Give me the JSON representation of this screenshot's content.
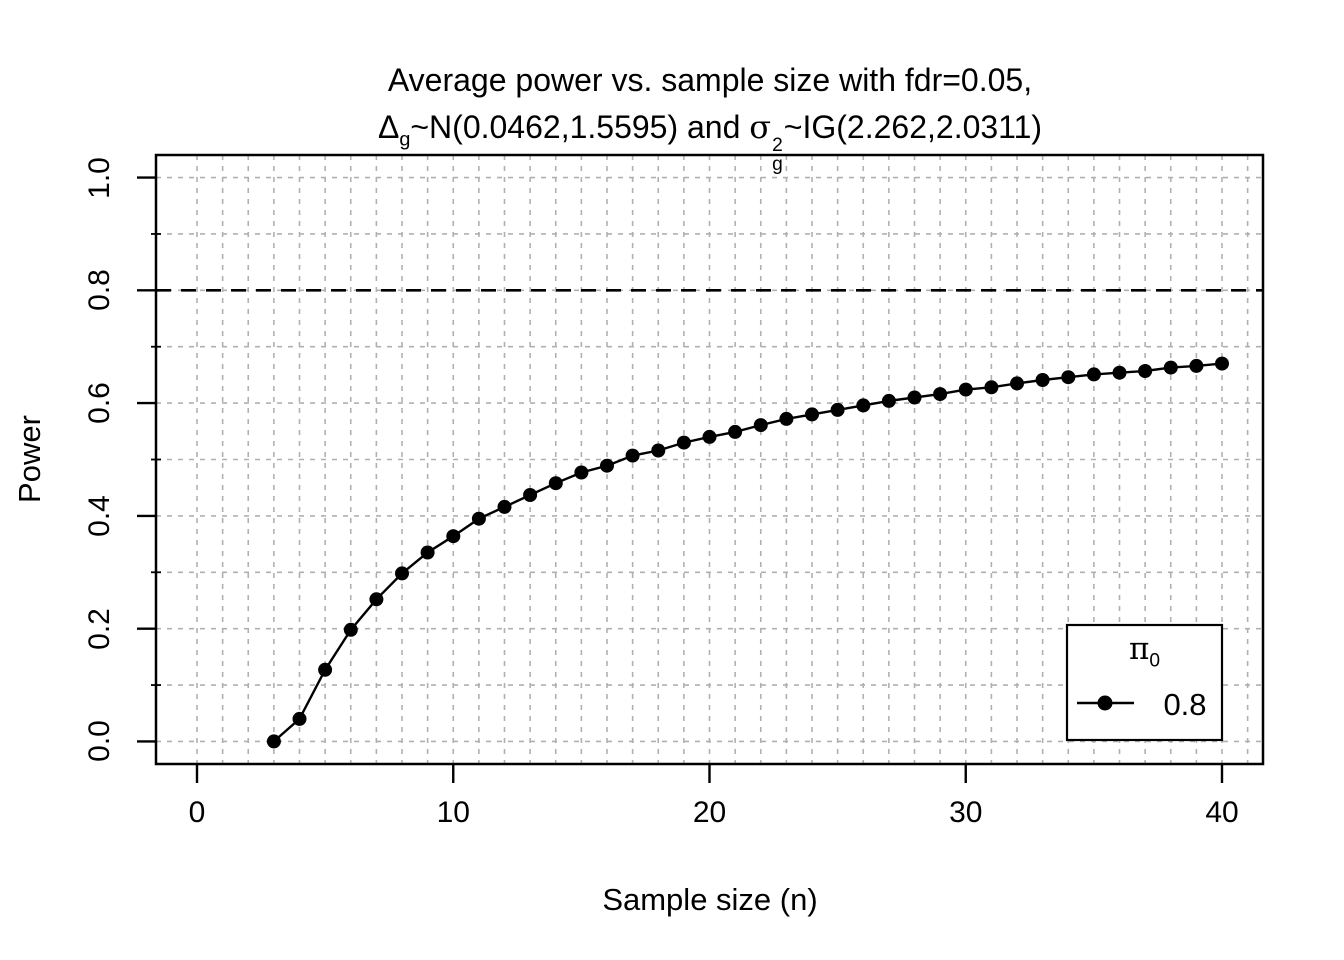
{
  "figure": {
    "background": "#ffffff",
    "foreground": "#000000",
    "grid_color": "#b0b0b0"
  },
  "title": {
    "line1": "Average power vs. sample size with fdr=0.05,",
    "line2_parts": {
      "delta": "Δ",
      "delta_sub": "g",
      "mid": "~N(0.0462,1.5595) and ",
      "sigma": "σ",
      "sigma_sup": "2",
      "sigma_sub": "g",
      "tail": "~IG(2.262,2.0311)"
    }
  },
  "axes": {
    "x": {
      "label": "Sample size (n)",
      "ticks": [
        {
          "value": 0,
          "label": "0"
        },
        {
          "value": 10,
          "label": "10"
        },
        {
          "value": 20,
          "label": "20"
        },
        {
          "value": 30,
          "label": "30"
        },
        {
          "value": 40,
          "label": "40"
        }
      ],
      "grid_from": 0,
      "grid_to": 41,
      "grid_step": 1
    },
    "y": {
      "label": "Power",
      "ticks": [
        {
          "value": 0.0,
          "label": "0.0"
        },
        {
          "value": 0.2,
          "label": "0.2"
        },
        {
          "value": 0.4,
          "label": "0.4"
        },
        {
          "value": 0.6,
          "label": "0.6"
        },
        {
          "value": 0.8,
          "label": "0.8"
        },
        {
          "value": 1.0,
          "label": "1.0"
        }
      ],
      "minor_ticks": [
        0.1,
        0.3,
        0.5,
        0.7,
        0.9
      ],
      "grid_from": 0,
      "grid_to": 1,
      "grid_step": 0.1
    }
  },
  "legend": {
    "title_symbol": "π",
    "title_sub": "0",
    "entries": [
      {
        "label": "0.8",
        "marker": "filled-circle-on-line"
      }
    ],
    "position": "bottom-right"
  },
  "chart_data": {
    "type": "line",
    "title": "Average power vs. sample size with fdr=0.05, Δg~N(0.0462,1.5595) and σg²~IG(2.262,2.0311)",
    "xlabel": "Sample size (n)",
    "ylabel": "Power",
    "xlim": [
      0,
      40
    ],
    "ylim": [
      0,
      1
    ],
    "grid": "dashed gray, vertical every 1 unit (0..41), horizontal every 0.1 (0..1)",
    "legend_position": "bottom-right",
    "reference_line": {
      "y": 0.8,
      "style": "dashed",
      "color": "#000000"
    },
    "x": [
      3,
      4,
      5,
      6,
      7,
      8,
      9,
      10,
      11,
      12,
      13,
      14,
      15,
      16,
      17,
      18,
      19,
      20,
      21,
      22,
      23,
      24,
      25,
      26,
      27,
      28,
      29,
      30,
      31,
      32,
      33,
      34,
      35,
      36,
      37,
      38,
      39,
      40
    ],
    "series": [
      {
        "name": "0.8",
        "marker": "filled-circle",
        "values": [
          0.0,
          0.04,
          0.127,
          0.198,
          0.252,
          0.298,
          0.335,
          0.364,
          0.395,
          0.416,
          0.437,
          0.458,
          0.477,
          0.489,
          0.507,
          0.516,
          0.53,
          0.54,
          0.549,
          0.561,
          0.572,
          0.58,
          0.588,
          0.596,
          0.604,
          0.61,
          0.616,
          0.624,
          0.628,
          0.635,
          0.641,
          0.646,
          0.651,
          0.654,
          0.657,
          0.663,
          0.666,
          0.67
        ]
      }
    ]
  }
}
